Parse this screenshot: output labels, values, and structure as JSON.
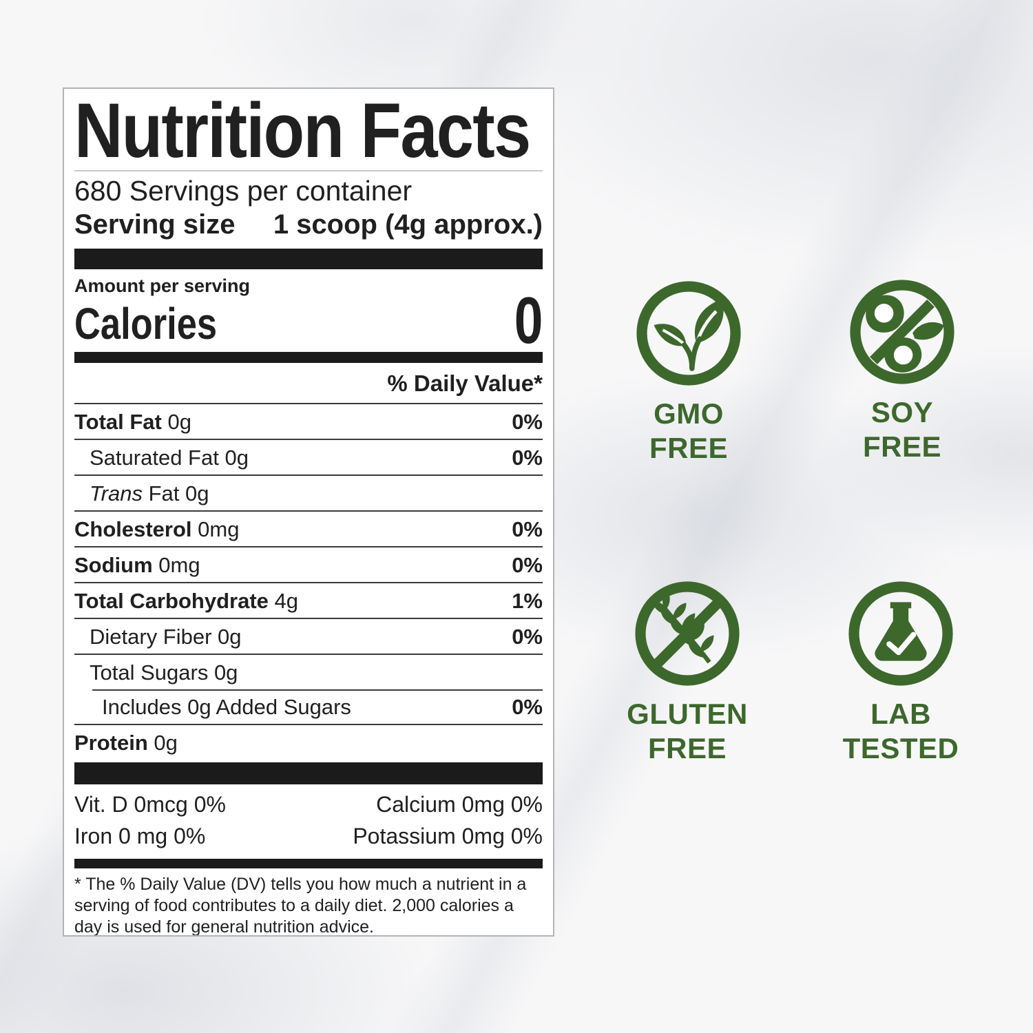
{
  "colors": {
    "accent_green": "#3d682c",
    "ink": "#202020",
    "label_background": "#ffffff"
  },
  "label": {
    "title": "Nutrition Facts",
    "servings_per_container": "680 Servings per container",
    "serving_size_label": "Serving size",
    "serving_size_value": "1 scoop (4g approx.)",
    "amount_per_serving": "Amount per serving",
    "calories_label": "Calories",
    "calories_value": "0",
    "daily_value_header": "% Daily Value*",
    "rows": [
      {
        "name": "Total Fat",
        "amount": "0g",
        "dv": "0%",
        "indent": 0,
        "bold": true
      },
      {
        "name": "Saturated Fat",
        "amount": "0g",
        "dv": "0%",
        "indent": 1,
        "bold": false
      },
      {
        "italic": "Trans",
        "name": "Fat",
        "amount": "0g",
        "dv": "",
        "indent": 1,
        "bold": false
      },
      {
        "name": "Cholesterol",
        "amount": "0mg",
        "dv": "0%",
        "indent": 0,
        "bold": true
      },
      {
        "name": "Sodium",
        "amount": "0mg",
        "dv": "0%",
        "indent": 0,
        "bold": true
      },
      {
        "name": "Total Carbohydrate",
        "amount": "4g",
        "dv": "1%",
        "indent": 0,
        "bold": true
      },
      {
        "name": "Dietary Fiber",
        "amount": "0g",
        "dv": "0%",
        "indent": 1,
        "bold": false
      },
      {
        "name": "Total Sugars",
        "amount": "0g",
        "dv": "",
        "indent": 1,
        "bold": false
      },
      {
        "name": "Includes 0g Added Sugars",
        "amount": "",
        "dv": "0%",
        "indent": 2,
        "bold": false,
        "rule_indent": true
      },
      {
        "name": "Protein",
        "amount": "0g",
        "dv": "",
        "indent": 0,
        "bold": true
      }
    ],
    "vitamins": [
      {
        "left": "Vit. D 0mcg 0%",
        "right": "Calcium 0mg 0%"
      },
      {
        "left": "Iron 0 mg 0%",
        "right": "Potassium 0mg 0%"
      }
    ],
    "footnote": "* The % Daily Value (DV) tells you how much a nutrient in a serving of food contributes to a daily diet. 2,000 calories a day is used for general nutrition advice."
  },
  "badges": [
    {
      "id": "gmo-free",
      "icon": "gmo-free-leaf-icon",
      "line1": "GMO",
      "line2": "FREE"
    },
    {
      "id": "soy-free",
      "icon": "no-soy-icon",
      "line1": "SOY",
      "line2": "FREE"
    },
    {
      "id": "gluten-free",
      "icon": "no-gluten-wheat-icon",
      "line1": "GLUTEN",
      "line2": "FREE"
    },
    {
      "id": "lab-tested",
      "icon": "lab-flask-check-icon",
      "line1": "LAB",
      "line2": "TESTED"
    }
  ]
}
